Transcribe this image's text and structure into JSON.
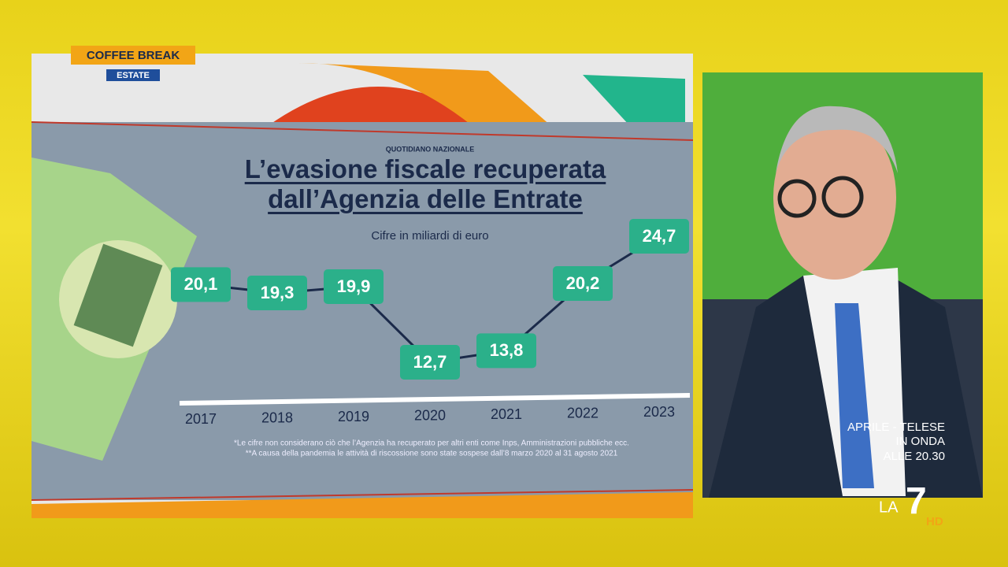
{
  "broadcast": {
    "show": "COFFEE BREAK",
    "edition": "ESTATE",
    "promo": [
      "APRILE - TELESE",
      "IN ONDA",
      "ALLE 20.30"
    ],
    "logo": "LA",
    "logo_number": "7",
    "logo_hd": "HD"
  },
  "chart_data": {
    "type": "line",
    "source": "QUOTIDIANO NAZIONALE",
    "title": "L’evasione fiscale recuperata dall’Agenzia delle Entrate",
    "subtitle": "Cifre in miliardi di euro",
    "categories": [
      "2017",
      "2018",
      "2019",
      "2020",
      "2021",
      "2022",
      "2023"
    ],
    "values": [
      20.1,
      19.3,
      19.9,
      12.7,
      13.8,
      20.2,
      24.7
    ],
    "value_labels": [
      "20,1",
      "19,3",
      "19,9",
      "12,7",
      "13,8",
      "20,2",
      "24,7"
    ],
    "color": "#1b2a4a",
    "label_color": "#2bb08a",
    "notes": [
      "*Le cifre non considerano ciò che l’Agenzia ha recuperato per altri enti come Inps, Amministrazioni pubbliche ecc.",
      "**A causa della pandemia le attività di riscossione sono state sospese dall’8 marzo 2020 al 31 agosto 2021"
    ]
  }
}
